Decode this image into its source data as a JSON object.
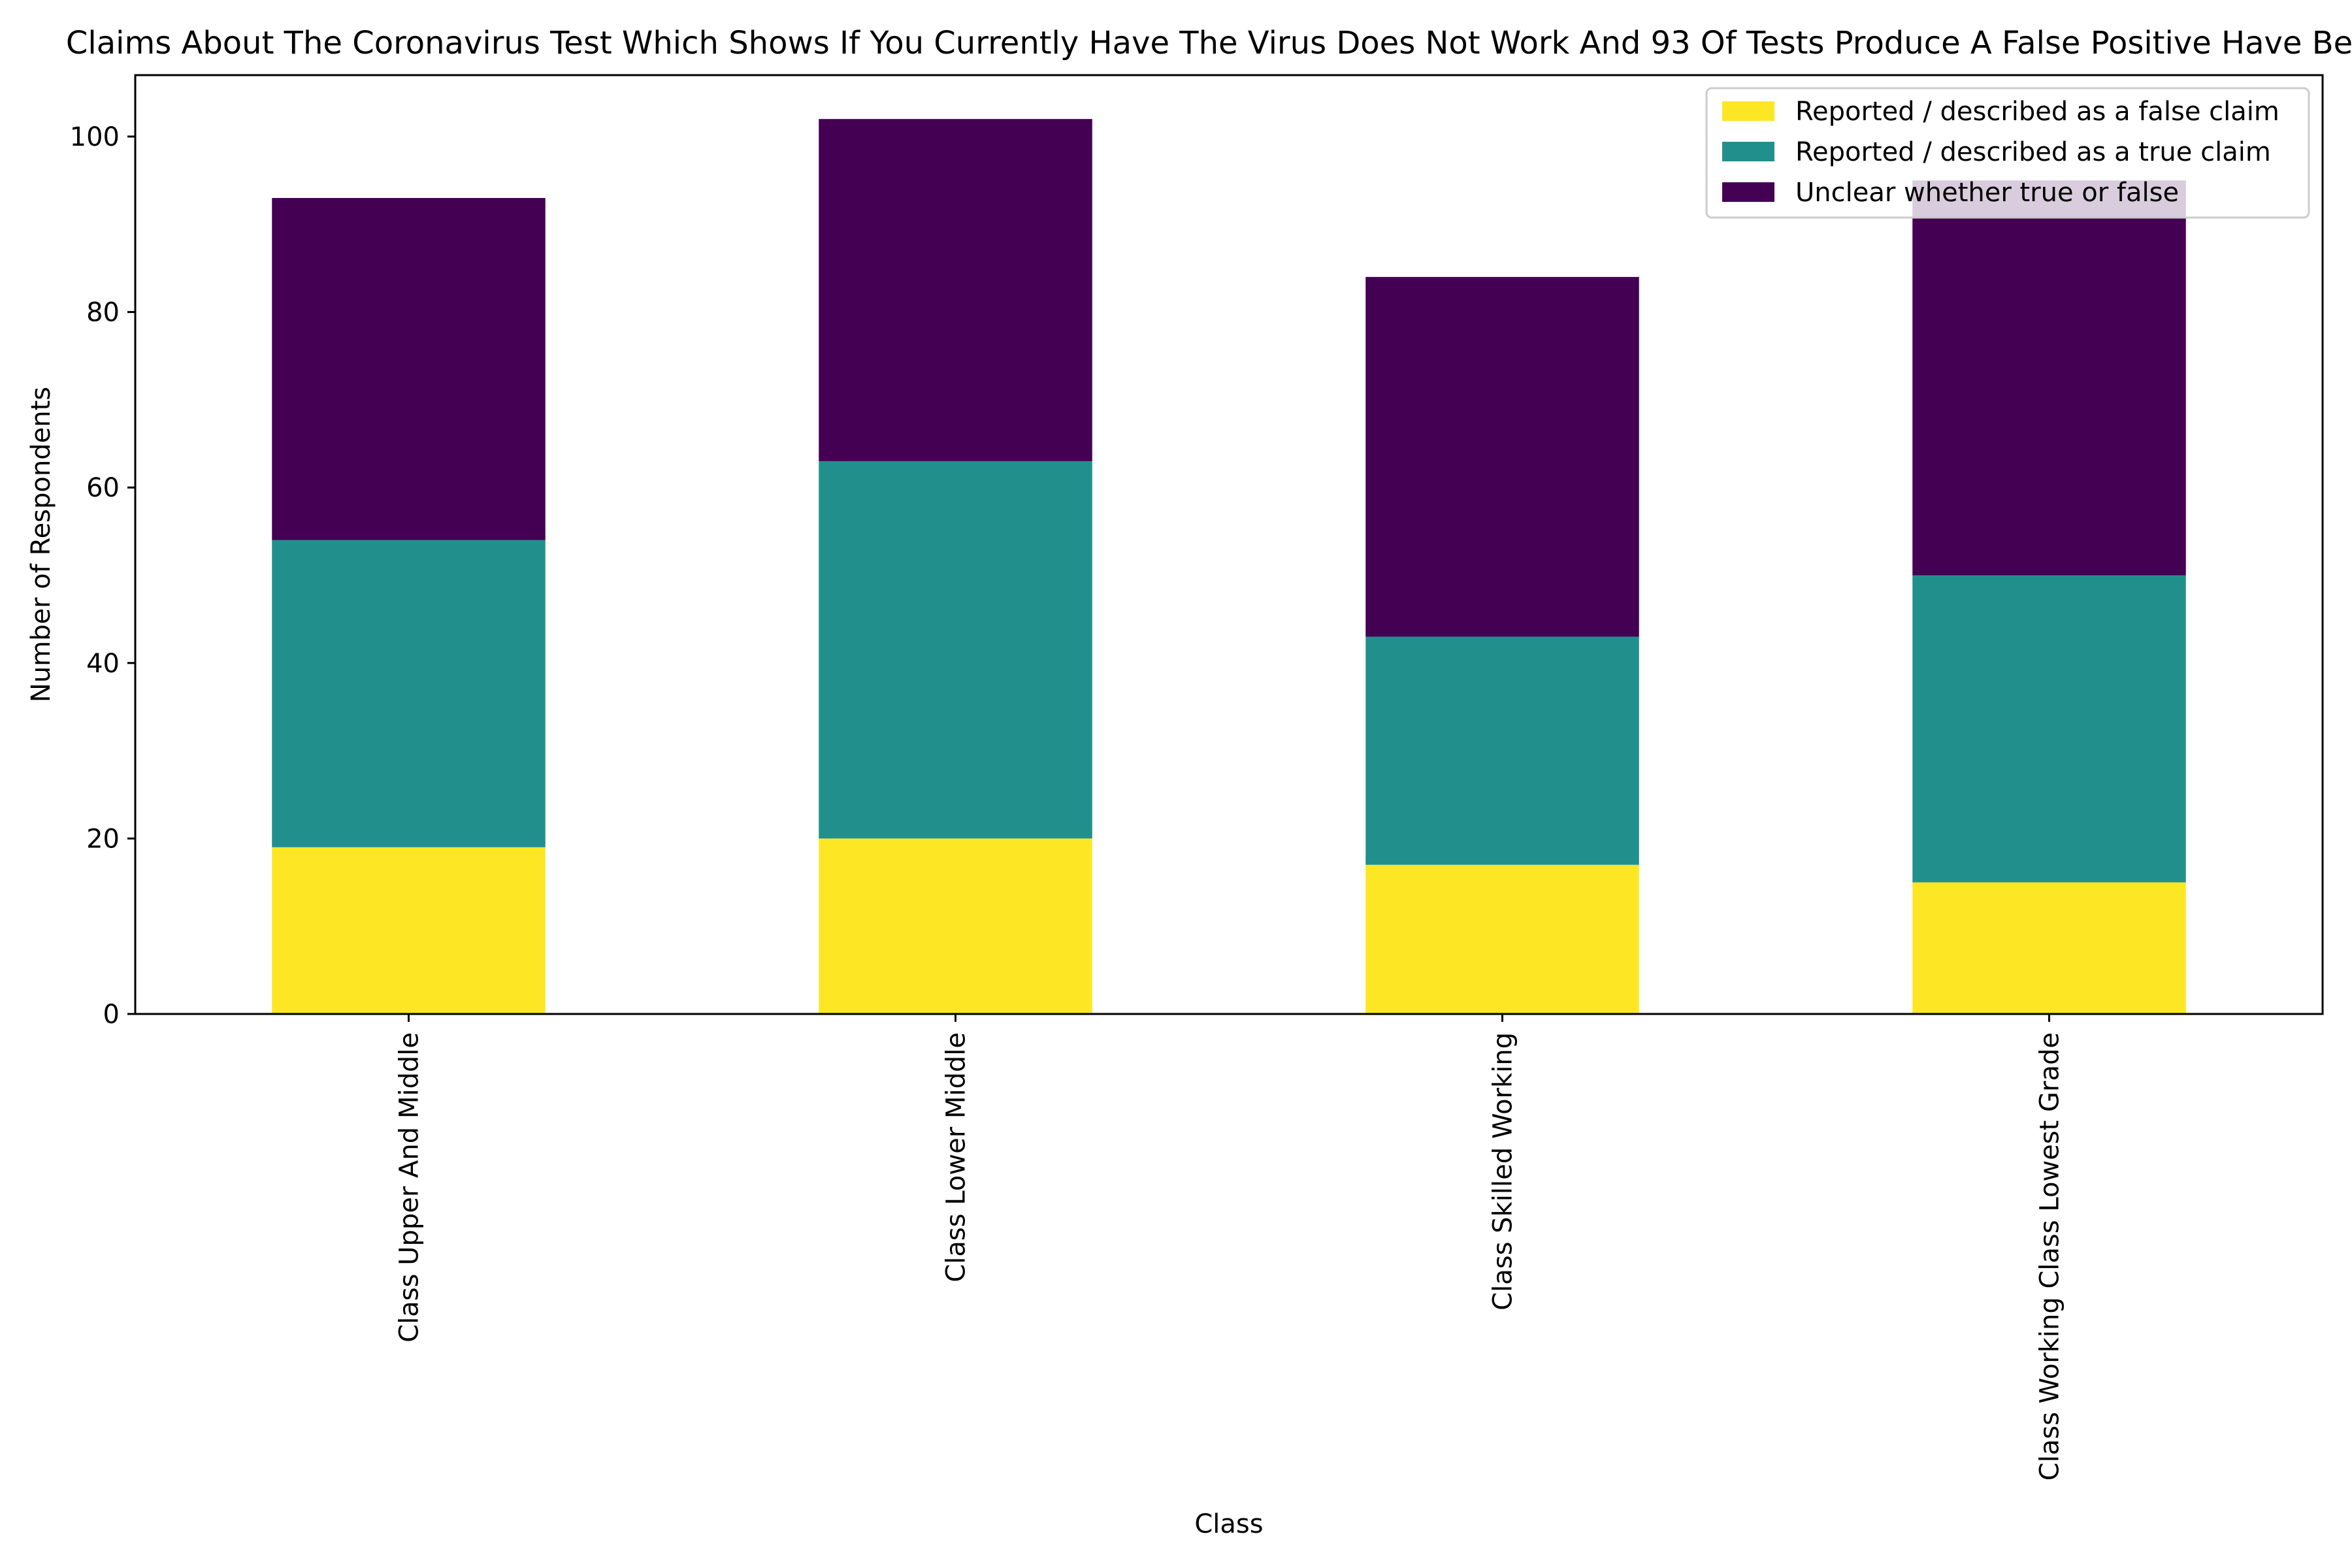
{
  "chart_data": {
    "type": "bar",
    "stacked": true,
    "title": "Claims About The Coronavirus Test Which Shows If You Currently Have The Virus Does Not Work And 93 Of Tests Produce A False Positive Have Been",
    "xlabel": "Class",
    "ylabel": "Number of Respondents",
    "categories": [
      "Class Upper And Middle",
      "Class Lower Middle",
      "Class Skilled Working",
      "Class Working Class Lowest Grade"
    ],
    "series": [
      {
        "name": "Reported / described as a false claim",
        "color": "#fde725",
        "values": [
          19,
          20,
          17,
          15
        ]
      },
      {
        "name": "Reported / described as a true claim",
        "color": "#21908d",
        "values": [
          35,
          43,
          26,
          35
        ]
      },
      {
        "name": "Unclear whether true or false",
        "color": "#440154",
        "values": [
          39,
          39,
          41,
          45
        ]
      }
    ],
    "ylim": [
      0,
      107
    ],
    "yticks": [
      0,
      20,
      40,
      60,
      80,
      100
    ],
    "legend_position": "top-right",
    "grid": false
  }
}
